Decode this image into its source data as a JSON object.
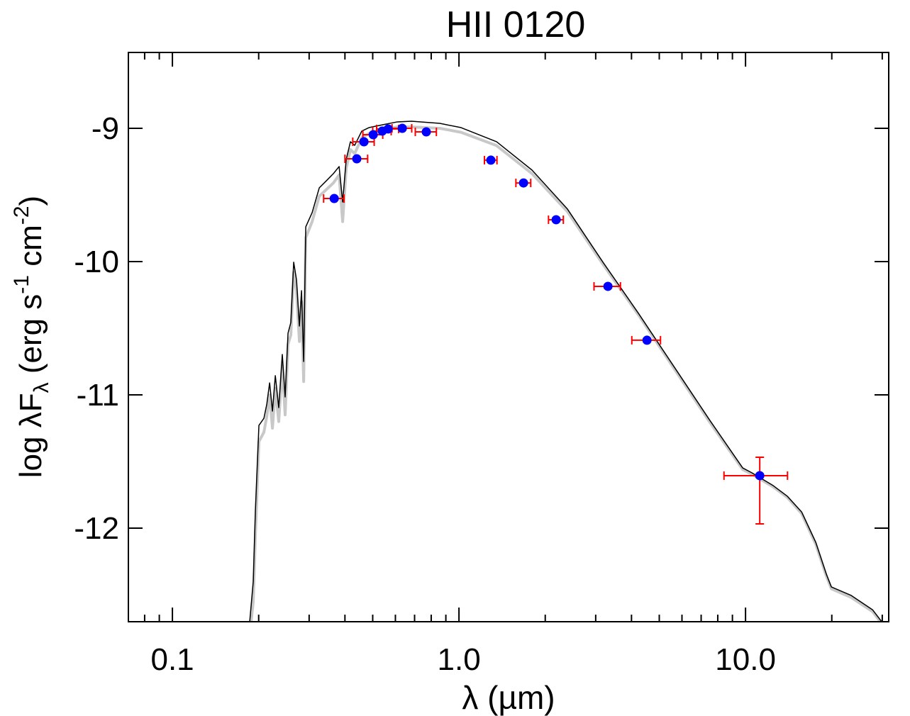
{
  "chart_data": {
    "type": "sed",
    "title": "HII 0120",
    "xlabel": "λ (µm)",
    "ylabel": [
      "log λF",
      "λ",
      " (erg s",
      "-1",
      " cm",
      "-2",
      ")"
    ],
    "xlog": true,
    "xlim": [
      0.0702,
      31.6
    ],
    "ylim": [
      -12.702,
      -8.431
    ],
    "xticks": [
      0.1,
      {
        "value": 1,
        "label": "1.0"
      },
      {
        "value": 10,
        "label": "10.0"
      }
    ],
    "xminorticks": [
      0.08,
      0.09,
      0.2,
      0.3,
      0.4,
      0.5,
      0.6,
      0.7,
      0.8,
      0.9,
      2,
      3,
      4,
      5,
      6,
      7,
      8,
      9,
      20,
      30
    ],
    "yticks": [
      -9,
      -10,
      -11,
      -12
    ],
    "model_x": [
      0.1861,
      0.1915,
      0.1948,
      0.2004,
      0.2086,
      0.2135,
      0.2184,
      0.2234,
      0.2286,
      0.235,
      0.2418,
      0.2474,
      0.2532,
      0.259,
      0.265,
      0.2711,
      0.2774,
      0.2822,
      0.2871,
      0.292,
      0.3073,
      0.3254,
      0.3444,
      0.3646,
      0.3817,
      0.3927,
      0.4041,
      0.4181,
      0.4326,
      0.458,
      0.485,
      0.5434,
      0.6091,
      0.6826,
      0.8574,
      1.017,
      1.353,
      1.799,
      2.391,
      3.181,
      4.229,
      5.623,
      7.478,
      9.774,
      10.53,
      12.49,
      14.0,
      15.69,
      17.58,
      19.15,
      19.93,
      23.38,
      27.74,
      29.87
    ],
    "models": [
      {
        "color": "#c8c8c8",
        "width": 4,
        "values": [
          -12.8,
          -12.55,
          -12.05,
          -11.35,
          -11.28,
          -11.16,
          -11.0,
          -11.25,
          -10.95,
          -11.2,
          -10.78,
          -11.15,
          -10.62,
          -10.55,
          -10.08,
          -10.22,
          -10.6,
          -10.3,
          -10.9,
          -9.82,
          -9.7,
          -9.51,
          -9.46,
          -9.41,
          -9.35,
          -9.7,
          -9.3,
          -9.16,
          -9.19,
          -9.07,
          -9.04,
          -9.01,
          -8.99,
          -8.99,
          -9.0,
          -9.03,
          -9.13,
          -9.34,
          -9.625,
          -10.02,
          -10.4,
          -10.8,
          -11.2,
          -11.56,
          -11.595,
          -11.69,
          -11.77,
          -11.89,
          -12.12,
          -12.36,
          -12.455,
          -12.52,
          -12.625,
          -12.715
        ]
      },
      {
        "color": "#000000",
        "width": 1.5,
        "values": [
          -12.702,
          -12.399,
          -11.867,
          -11.229,
          -11.176,
          -11.069,
          -10.91,
          -11.122,
          -10.856,
          -11.096,
          -10.697,
          -11.016,
          -10.537,
          -10.457,
          -10.005,
          -10.138,
          -10.484,
          -10.218,
          -10.75,
          -9.739,
          -9.633,
          -9.447,
          -9.394,
          -9.34,
          -9.287,
          -9.553,
          -9.234,
          -9.101,
          -9.128,
          -9.021,
          -8.995,
          -8.973,
          -8.952,
          -8.947,
          -8.963,
          -8.995,
          -9.101,
          -9.314,
          -9.606,
          -10.005,
          -10.388,
          -10.787,
          -11.186,
          -11.548,
          -11.585,
          -11.681,
          -11.761,
          -11.878,
          -12.106,
          -12.346,
          -12.441,
          -12.505,
          -12.612,
          -12.702
        ]
      }
    ],
    "points": {
      "color": "#0000ff",
      "errcolor": "#ff0000",
      "x": [
        0.367,
        0.44,
        0.466,
        0.502,
        0.54,
        0.566,
        0.634,
        0.769,
        1.292,
        1.68,
        2.183,
        3.31,
        4.53,
        11.21
      ],
      "values": [
        -9.527,
        -9.229,
        -9.101,
        -9.048,
        -9.021,
        -9.005,
        -9.0,
        -9.027,
        -9.239,
        -9.41,
        -9.686,
        -10.186,
        -10.59,
        -11.606
      ],
      "xerr": [
        0.03,
        0.04,
        0.04,
        0.04,
        0.04,
        0.05,
        0.05,
        0.065,
        0.065,
        0.1,
        0.13,
        0.35,
        0.52,
        2.8
      ],
      "yerr_low": [
        0.01,
        0.01,
        0.01,
        0.01,
        0.01,
        0.01,
        0.01,
        0.01,
        0.01,
        0.01,
        0.01,
        0.01,
        0.01,
        0.362
      ],
      "yerr_high": [
        0.01,
        0.01,
        0.01,
        0.01,
        0.01,
        0.01,
        0.01,
        0.01,
        0.01,
        0.01,
        0.01,
        0.01,
        0.01,
        0.138
      ]
    }
  }
}
